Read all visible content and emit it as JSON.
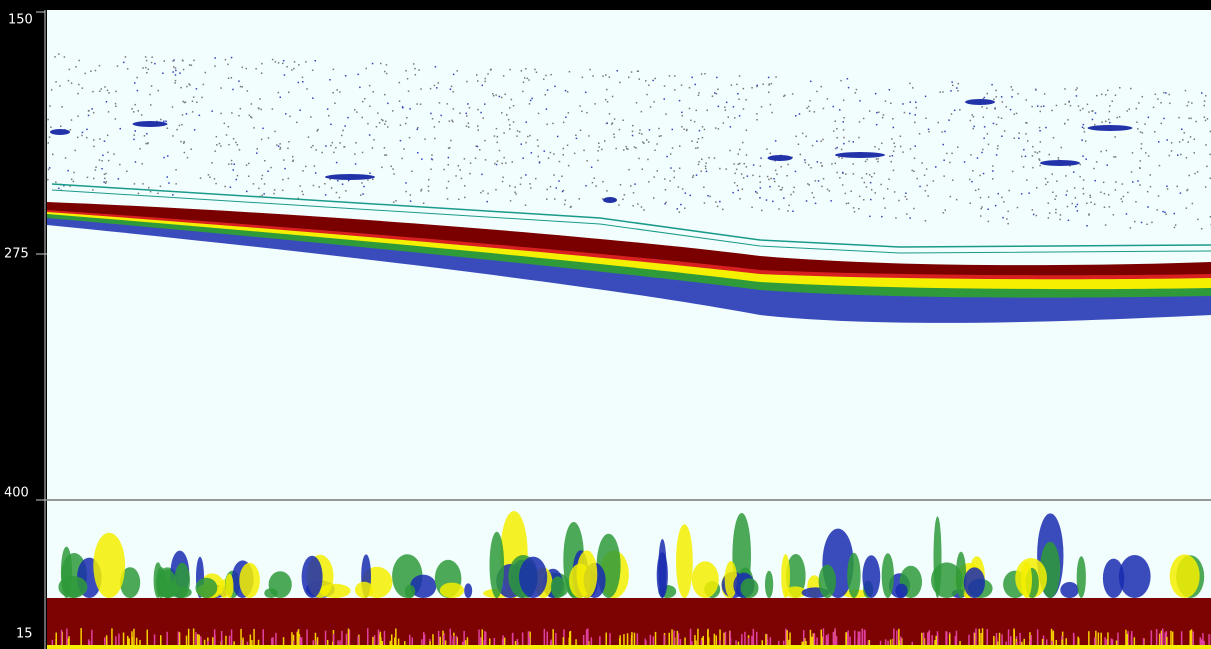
{
  "depth_scale": {
    "labels": [
      "150",
      "275",
      "400"
    ]
  },
  "bottom_panel": {
    "label": "15"
  }
}
